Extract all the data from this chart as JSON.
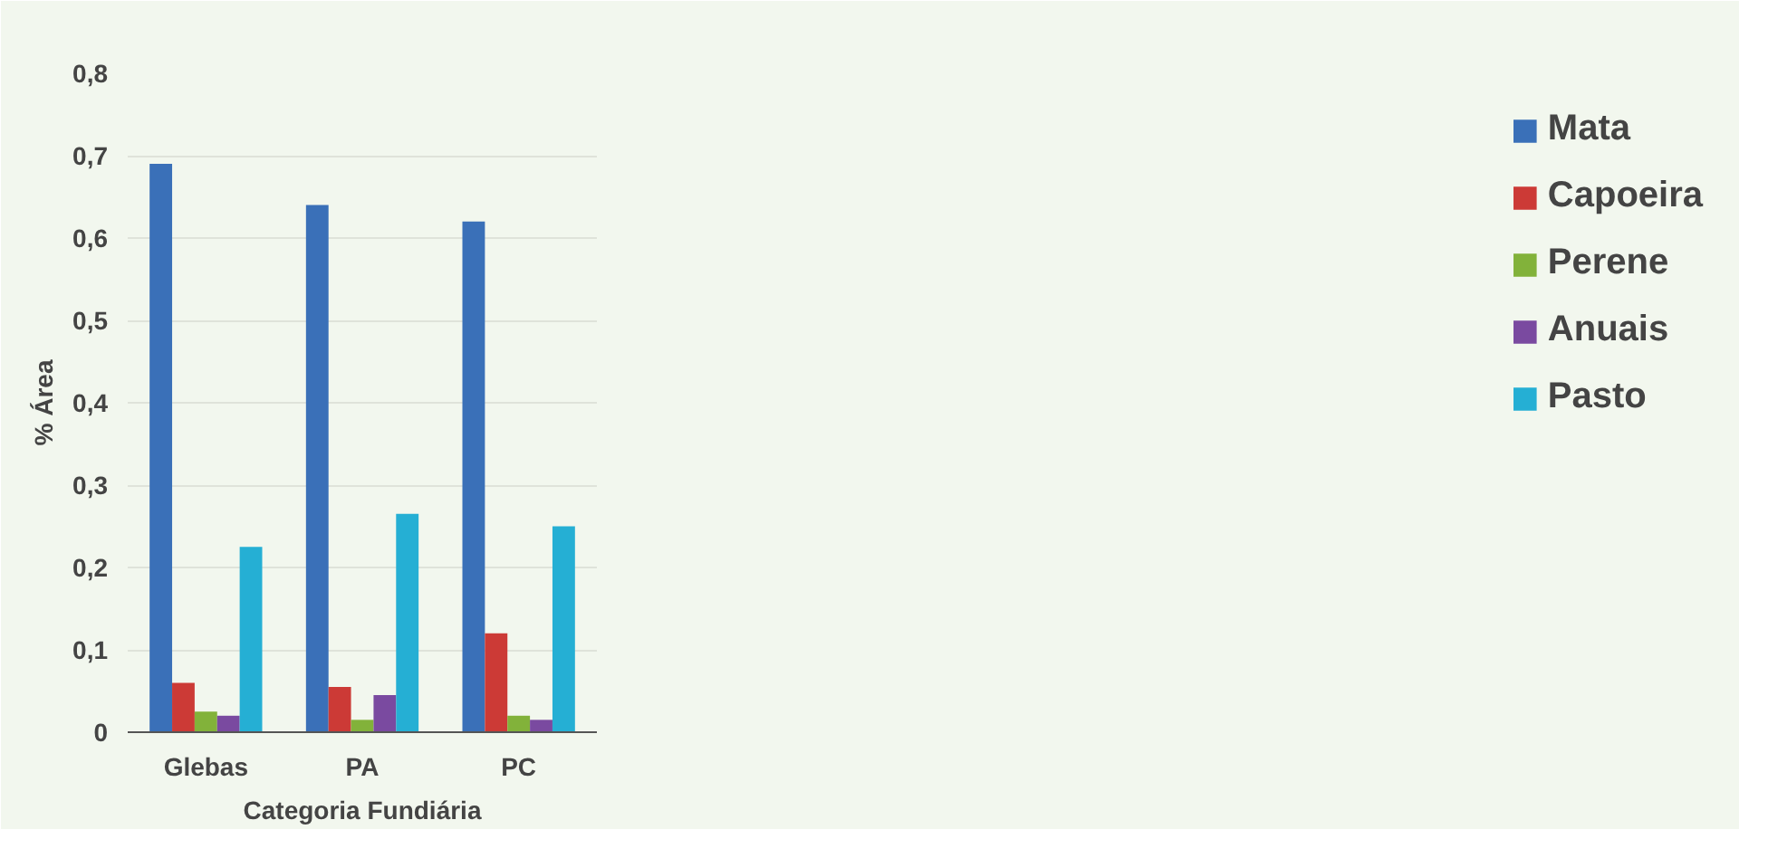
{
  "chart_data": {
    "type": "bar",
    "xlabel": "Categoria Fundiária",
    "ylabel": "% Área",
    "categories": [
      "Glebas",
      "PA",
      "PC"
    ],
    "series": [
      {
        "name": "Mata",
        "color": "#3a70b8",
        "values": [
          0.69,
          0.64,
          0.62
        ]
      },
      {
        "name": "Capoeira",
        "color": "#cc3a36",
        "values": [
          0.06,
          0.055,
          0.12
        ]
      },
      {
        "name": "Perene",
        "color": "#82b23a",
        "values": [
          0.025,
          0.015,
          0.02
        ]
      },
      {
        "name": "Anuais",
        "color": "#7a4aa0",
        "values": [
          0.02,
          0.045,
          0.015
        ]
      },
      {
        "name": "Pasto",
        "color": "#25afd4",
        "values": [
          0.225,
          0.265,
          0.25
        ]
      }
    ],
    "ylim": [
      0,
      0.8
    ],
    "yticks": [
      {
        "value": 0,
        "label": "0"
      },
      {
        "value": 0.1,
        "label": "0,1"
      },
      {
        "value": 0.2,
        "label": "0,2"
      },
      {
        "value": 0.3,
        "label": "0,3"
      },
      {
        "value": 0.4,
        "label": "0,4"
      },
      {
        "value": 0.5,
        "label": "0,5"
      },
      {
        "value": 0.6,
        "label": "0,6"
      },
      {
        "value": 0.7,
        "label": "0,7"
      },
      {
        "value": 0.8,
        "label": "0,8"
      }
    ],
    "grid": "y",
    "legend": "right"
  }
}
